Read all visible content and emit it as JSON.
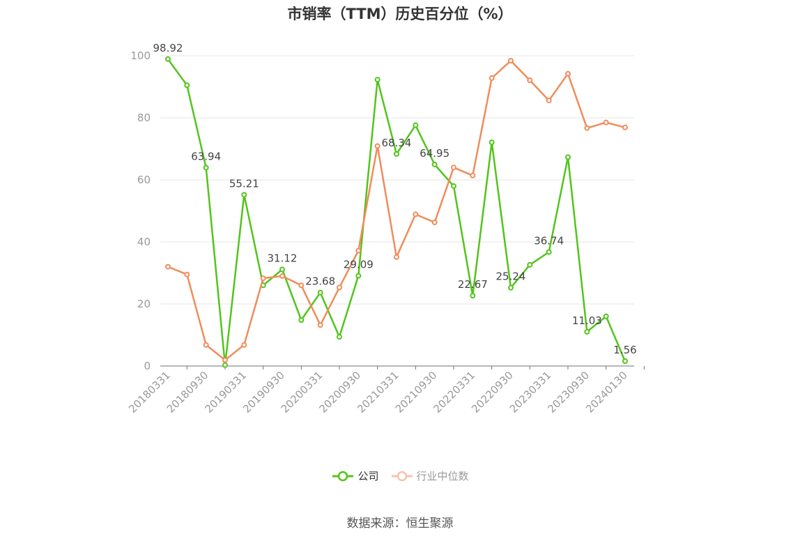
{
  "chart_data": {
    "type": "line",
    "title": "市销率（TTM）历史百分位（%）",
    "x": [
      "20180331",
      "20180630",
      "20180930",
      "20181231",
      "20190331",
      "20190630",
      "20190930",
      "20191231",
      "20200331",
      "20200630",
      "20200930",
      "20201231",
      "20210331",
      "20210630",
      "20210930",
      "20211231",
      "20220331",
      "20220630",
      "20220930",
      "20221231",
      "20230331",
      "20230630",
      "20230930",
      "20231231",
      "20240130"
    ],
    "x_tick_labels": [
      "20180331",
      "20180930",
      "20190331",
      "20190930",
      "20200331",
      "20200930",
      "20210331",
      "20210930",
      "20220331",
      "20220930",
      "20230331",
      "20230930",
      "20240130"
    ],
    "ylim": [
      0,
      100
    ],
    "y_ticks": [
      0,
      20,
      40,
      60,
      80,
      100
    ],
    "grid": true,
    "legend_position": "bottom",
    "series": [
      {
        "name": "公司",
        "color": "#52c41a",
        "values": [
          98.92,
          90.5,
          63.94,
          0.3,
          55.21,
          26.0,
          31.12,
          14.8,
          23.68,
          9.4,
          29.09,
          92.3,
          68.34,
          77.6,
          64.95,
          58.0,
          22.67,
          72.1,
          25.24,
          32.6,
          36.74,
          67.3,
          11.03,
          16.0,
          1.56
        ],
        "labels": [
          "98.92",
          null,
          "63.94",
          null,
          "55.21",
          null,
          "31.12",
          null,
          "23.68",
          null,
          "29.09",
          null,
          "68.34",
          null,
          "64.95",
          null,
          "22.67",
          null,
          "25.24",
          null,
          "36.74",
          null,
          "11.03",
          null,
          "1.56"
        ]
      },
      {
        "name": "行业中位数",
        "color": "#f08c5a",
        "values": [
          32.0,
          29.5,
          6.8,
          1.9,
          6.8,
          28.3,
          29.0,
          26.0,
          13.2,
          25.3,
          37.2,
          70.9,
          35.1,
          48.9,
          46.3,
          64.0,
          61.4,
          92.8,
          98.4,
          92.1,
          85.6,
          94.2,
          76.7,
          78.5,
          76.9
        ],
        "labels": []
      }
    ]
  },
  "source_text": "数据来源：恒生聚源"
}
